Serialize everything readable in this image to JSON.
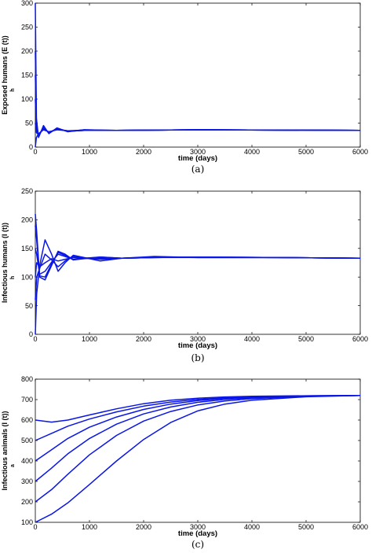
{
  "chart_data": [
    {
      "type": "line",
      "caption": "(a)",
      "xlabel": "time (days)",
      "ylabel": "Exposed humans (E (t))",
      "ylabel_sub": "h",
      "xlim": [
        0,
        6000
      ],
      "ylim": [
        0,
        300
      ],
      "xticks": [
        0,
        1000,
        2000,
        3000,
        4000,
        5000,
        6000
      ],
      "yticks": [
        0,
        50,
        100,
        150,
        200,
        250,
        300
      ],
      "series": [
        {
          "x": [
            0,
            20,
            60,
            150,
            250,
            400,
            600,
            900,
            1500,
            3000,
            6000
          ],
          "y": [
            300,
            60,
            20,
            45,
            28,
            40,
            32,
            36,
            35,
            36,
            35
          ]
        },
        {
          "x": [
            0,
            20,
            60,
            150,
            250,
            400,
            600,
            900,
            1500,
            3000,
            6000
          ],
          "y": [
            100,
            40,
            24,
            40,
            30,
            38,
            33,
            35,
            35,
            36,
            35
          ]
        },
        {
          "x": [
            0,
            20,
            60,
            150,
            250,
            400,
            600,
            900,
            1500,
            3000,
            6000
          ],
          "y": [
            0,
            20,
            28,
            36,
            32,
            36,
            34,
            35,
            35,
            36,
            35
          ]
        },
        {
          "x": [
            0,
            20,
            60,
            150,
            250,
            400,
            600,
            900,
            1500,
            3000,
            6000
          ],
          "y": [
            50,
            30,
            26,
            38,
            31,
            37,
            34,
            35,
            35,
            36,
            35
          ]
        },
        {
          "x": [
            0,
            20,
            60,
            150,
            250,
            400,
            600,
            900,
            1500,
            3000,
            6000
          ],
          "y": [
            200,
            50,
            22,
            42,
            29,
            39,
            33,
            36,
            35,
            36,
            35
          ]
        },
        {
          "x": [
            0,
            20,
            60,
            150,
            250,
            400,
            600,
            900,
            1500,
            3000,
            6000
          ],
          "y": [
            150,
            45,
            23,
            41,
            30,
            38,
            33,
            35,
            35,
            36,
            35
          ]
        }
      ]
    },
    {
      "type": "line",
      "caption": "(b)",
      "xlabel": "time (days)",
      "ylabel": "Infectious humans (I (t))",
      "ylabel_sub": "h",
      "xlim": [
        0,
        6000
      ],
      "ylim": [
        0,
        250
      ],
      "xticks": [
        0,
        1000,
        2000,
        3000,
        4000,
        5000,
        6000
      ],
      "yticks": [
        0,
        50,
        100,
        150,
        200,
        250
      ],
      "series": [
        {
          "x": [
            0,
            25,
            80,
            180,
            300,
            420,
            550,
            700,
            900,
            1200,
            1600,
            2200,
            3000,
            4500,
            6000
          ],
          "y": [
            210,
            180,
            100,
            95,
            120,
            145,
            140,
            130,
            132,
            135,
            133,
            134,
            135,
            134,
            133
          ]
        },
        {
          "x": [
            0,
            25,
            80,
            180,
            300,
            420,
            550,
            700,
            900,
            1200,
            1600,
            2200,
            3000,
            4500,
            6000
          ],
          "y": [
            0,
            70,
            120,
            165,
            140,
            110,
            125,
            138,
            134,
            128,
            133,
            136,
            134,
            134,
            133
          ]
        },
        {
          "x": [
            0,
            25,
            80,
            180,
            300,
            420,
            550,
            700,
            900,
            1200,
            1600,
            2200,
            3000,
            4500,
            6000
          ],
          "y": [
            60,
            100,
            115,
            140,
            130,
            118,
            128,
            136,
            133,
            131,
            133,
            135,
            134,
            134,
            133
          ]
        },
        {
          "x": [
            0,
            25,
            80,
            180,
            300,
            420,
            550,
            700,
            900,
            1200,
            1600,
            2200,
            3000,
            4500,
            6000
          ],
          "y": [
            150,
            140,
            105,
            110,
            126,
            140,
            136,
            131,
            133,
            134,
            133,
            134,
            135,
            134,
            133
          ]
        },
        {
          "x": [
            0,
            25,
            80,
            180,
            300,
            420,
            550,
            700,
            900,
            1200,
            1600,
            2200,
            3000,
            4500,
            6000
          ],
          "y": [
            100,
            125,
            118,
            125,
            132,
            128,
            131,
            134,
            133,
            133,
            133,
            134,
            134,
            134,
            133
          ]
        },
        {
          "x": [
            0,
            25,
            80,
            180,
            300,
            420,
            550,
            700,
            900,
            1200,
            1600,
            2200,
            3000,
            4500,
            6000
          ],
          "y": [
            190,
            165,
            102,
            100,
            123,
            143,
            138,
            130,
            133,
            135,
            133,
            134,
            135,
            134,
            133
          ]
        }
      ]
    },
    {
      "type": "line",
      "caption": "(c)",
      "xlabel": "time (days)",
      "ylabel": "Infectious animals (I (t))",
      "ylabel_sub": "a",
      "xlim": [
        0,
        6000
      ],
      "ylim": [
        100,
        800
      ],
      "xticks": [
        0,
        1000,
        2000,
        3000,
        4000,
        5000,
        6000
      ],
      "yticks": [
        100,
        200,
        300,
        400,
        500,
        600,
        700,
        800
      ],
      "series": [
        {
          "x": [
            0,
            300,
            600,
            1000,
            1500,
            2000,
            2500,
            3000,
            3500,
            4000,
            5000,
            6000
          ],
          "y": [
            600,
            590,
            600,
            625,
            655,
            680,
            697,
            707,
            713,
            716,
            719,
            720
          ]
        },
        {
          "x": [
            0,
            300,
            600,
            1000,
            1500,
            2000,
            2500,
            3000,
            3500,
            4000,
            5000,
            6000
          ],
          "y": [
            500,
            535,
            570,
            605,
            640,
            668,
            688,
            701,
            709,
            714,
            718,
            720
          ]
        },
        {
          "x": [
            0,
            300,
            600,
            1000,
            1500,
            2000,
            2500,
            3000,
            3500,
            4000,
            5000,
            6000
          ],
          "y": [
            400,
            455,
            510,
            565,
            615,
            652,
            678,
            695,
            706,
            712,
            718,
            720
          ]
        },
        {
          "x": [
            0,
            300,
            600,
            1000,
            1500,
            2000,
            2500,
            3000,
            3500,
            4000,
            5000,
            6000
          ],
          "y": [
            300,
            365,
            435,
            510,
            580,
            630,
            664,
            687,
            701,
            709,
            717,
            720
          ]
        },
        {
          "x": [
            0,
            300,
            600,
            1000,
            1500,
            2000,
            2500,
            3000,
            3500,
            4000,
            5000,
            6000
          ],
          "y": [
            200,
            260,
            335,
            430,
            525,
            595,
            642,
            674,
            693,
            705,
            716,
            720
          ]
        },
        {
          "x": [
            0,
            300,
            600,
            1000,
            1500,
            2000,
            2500,
            3000,
            3500,
            4000,
            5000,
            6000
          ],
          "y": [
            100,
            140,
            195,
            285,
            400,
            505,
            588,
            645,
            678,
            697,
            714,
            720
          ]
        }
      ]
    }
  ]
}
